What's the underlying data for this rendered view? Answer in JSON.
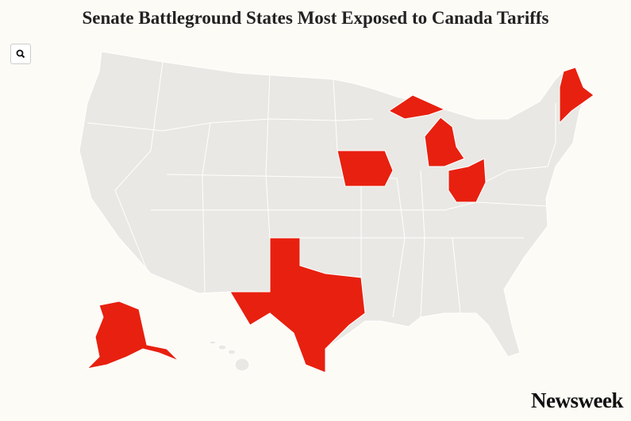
{
  "header": {
    "title": "Senate Battleground States Most Exposed to Canada Tariffs"
  },
  "footer": {
    "brand": "Newsweek"
  }
}
